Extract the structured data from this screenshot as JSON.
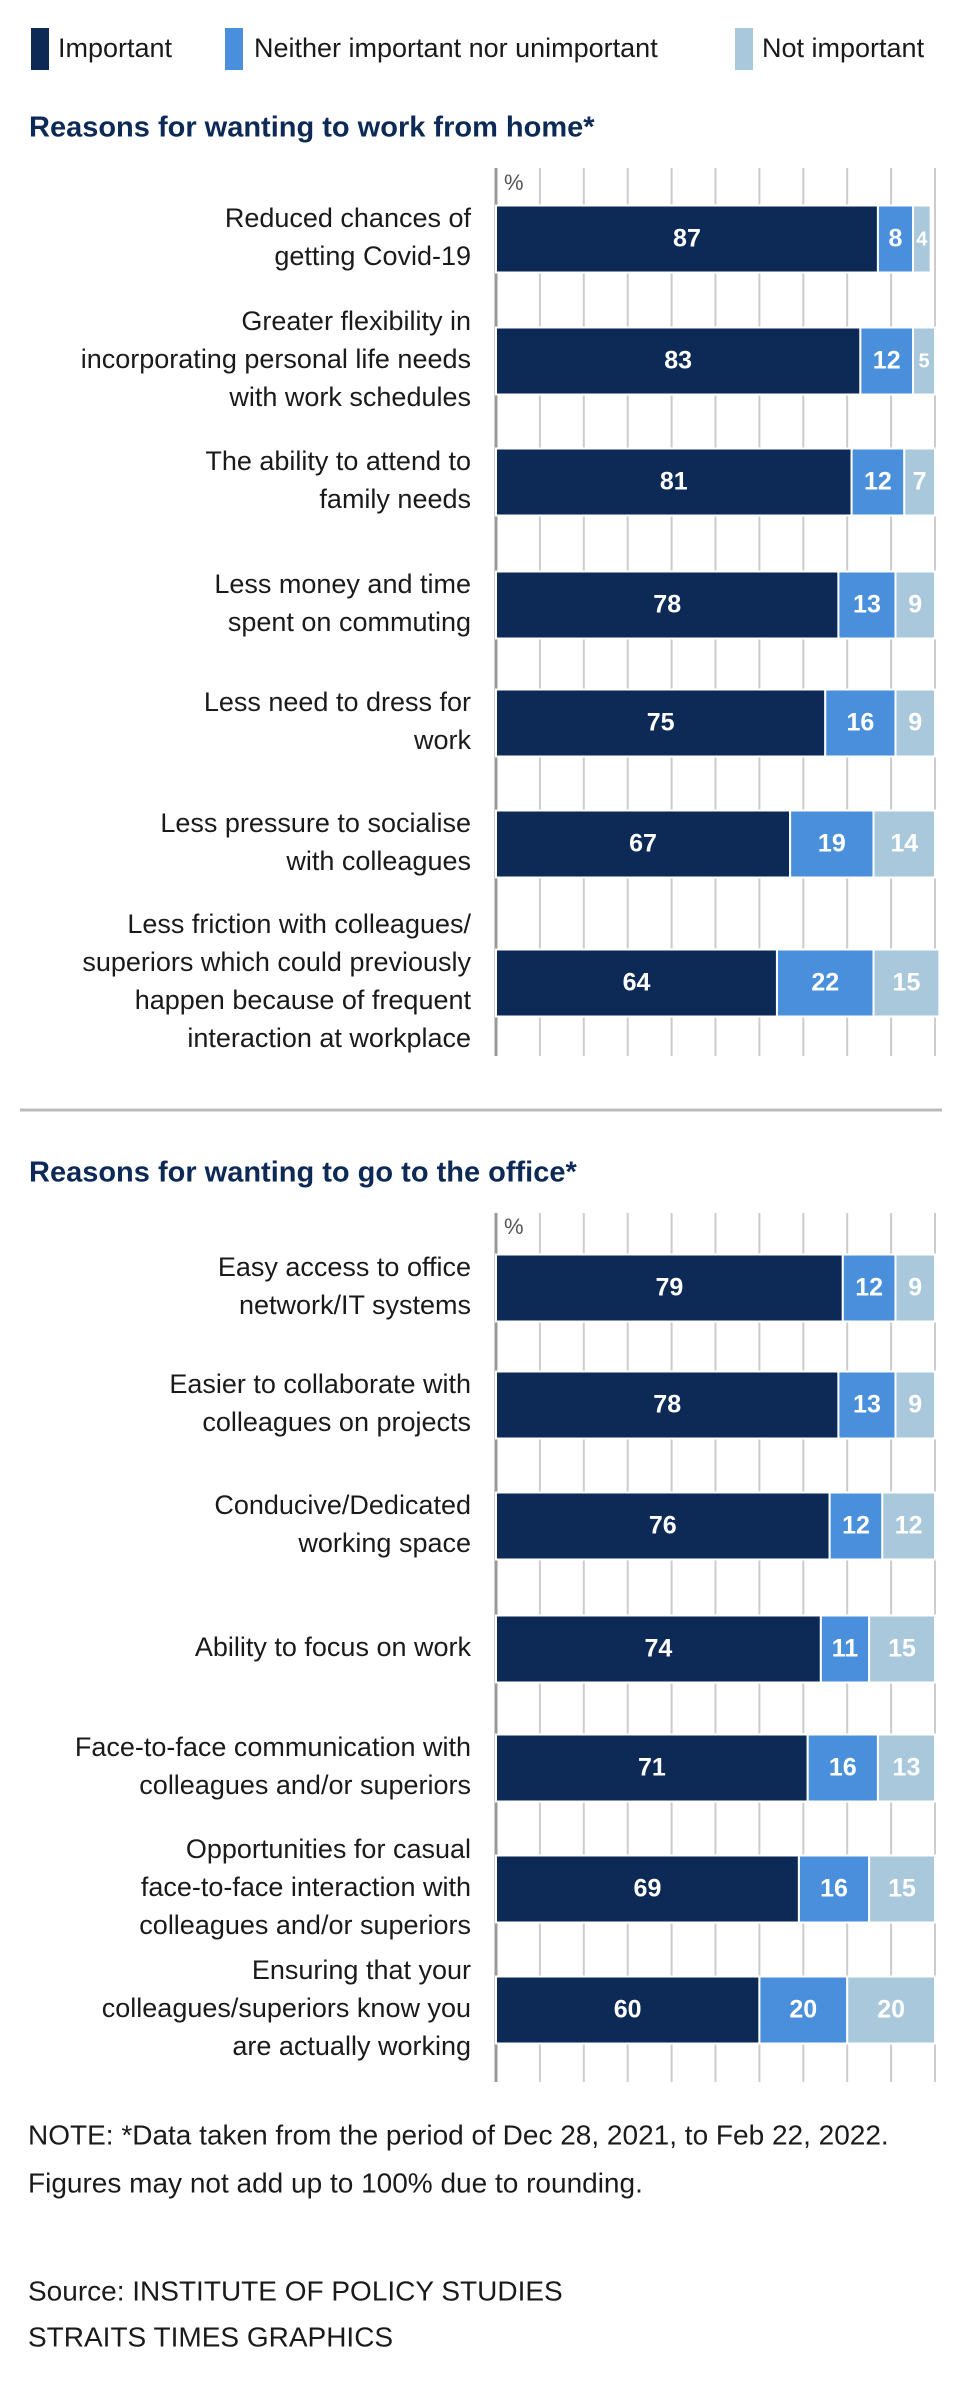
{
  "chart_data": [
    {
      "type": "stacked-bar-horizontal",
      "title": "Reasons for wanting to work from home*",
      "xlabel": "%",
      "categories": [
        [
          "Reduced chances of",
          "getting Covid-19"
        ],
        [
          "Greater flexibility in",
          "incorporating personal life needs",
          "with work schedules"
        ],
        [
          "The ability to attend to",
          "family needs"
        ],
        [
          "Less money and time",
          "spent on commuting"
        ],
        [
          "Less need to dress for",
          "work"
        ],
        [
          "Less pressure to socialise",
          "with colleagues"
        ],
        [
          "Less friction with colleagues/",
          "superiors which could previously",
          "happen because of frequent",
          "interaction at workplace"
        ]
      ],
      "series": [
        {
          "name": "Important",
          "color": "#0d2a57",
          "values": [
            87,
            83,
            81,
            78,
            75,
            67,
            64
          ]
        },
        {
          "name": "Neither important nor unimportant",
          "color": "#4a8fdc",
          "values": [
            8,
            12,
            12,
            13,
            16,
            19,
            22
          ]
        },
        {
          "name": "Not important",
          "color": "#a9c8dc",
          "values": [
            4,
            5,
            7,
            9,
            9,
            14,
            15
          ]
        }
      ],
      "xlim": [
        0,
        100
      ],
      "xticks": [
        0,
        10,
        20,
        30,
        40,
        50,
        60,
        70,
        80,
        90,
        100
      ],
      "grid": true
    },
    {
      "type": "stacked-bar-horizontal",
      "title": "Reasons for wanting to go to the office*",
      "xlabel": "%",
      "categories": [
        [
          "Easy access to office",
          "network/IT systems"
        ],
        [
          "Easier to collaborate with",
          "colleagues on projects"
        ],
        [
          "Conducive/Dedicated",
          "working space"
        ],
        [
          "Ability to focus on work"
        ],
        [
          "Face-to-face communication with",
          "colleagues and/or superiors"
        ],
        [
          "Opportunities for casual",
          "face-to-face interaction with",
          "colleagues and/or superiors"
        ],
        [
          "Ensuring that your",
          "colleagues/superiors know you",
          "are actually working"
        ]
      ],
      "series": [
        {
          "color": "#0d2a57",
          "values": [
            79,
            78,
            76,
            74,
            71,
            69,
            60
          ]
        },
        {
          "color": "#4a8fdc",
          "values": [
            12,
            13,
            12,
            11,
            16,
            16,
            20
          ]
        },
        {
          "color": "#a9c8dc",
          "values": [
            9,
            9,
            12,
            15,
            13,
            15,
            20
          ]
        }
      ],
      "xlim": [
        0,
        100
      ],
      "xticks": [
        0,
        10,
        20,
        30,
        40,
        50,
        60,
        70,
        80,
        90,
        100
      ],
      "grid": true
    }
  ],
  "note": [
    "NOTE: *Data taken from the period of Dec 28, 2021, to Feb 22, 2022.",
    "Figures may not add up to 100% due to rounding."
  ],
  "source": [
    "Source: INSTITUTE OF POLICY STUDIES",
    "STRAITS TIMES GRAPHICS"
  ]
}
